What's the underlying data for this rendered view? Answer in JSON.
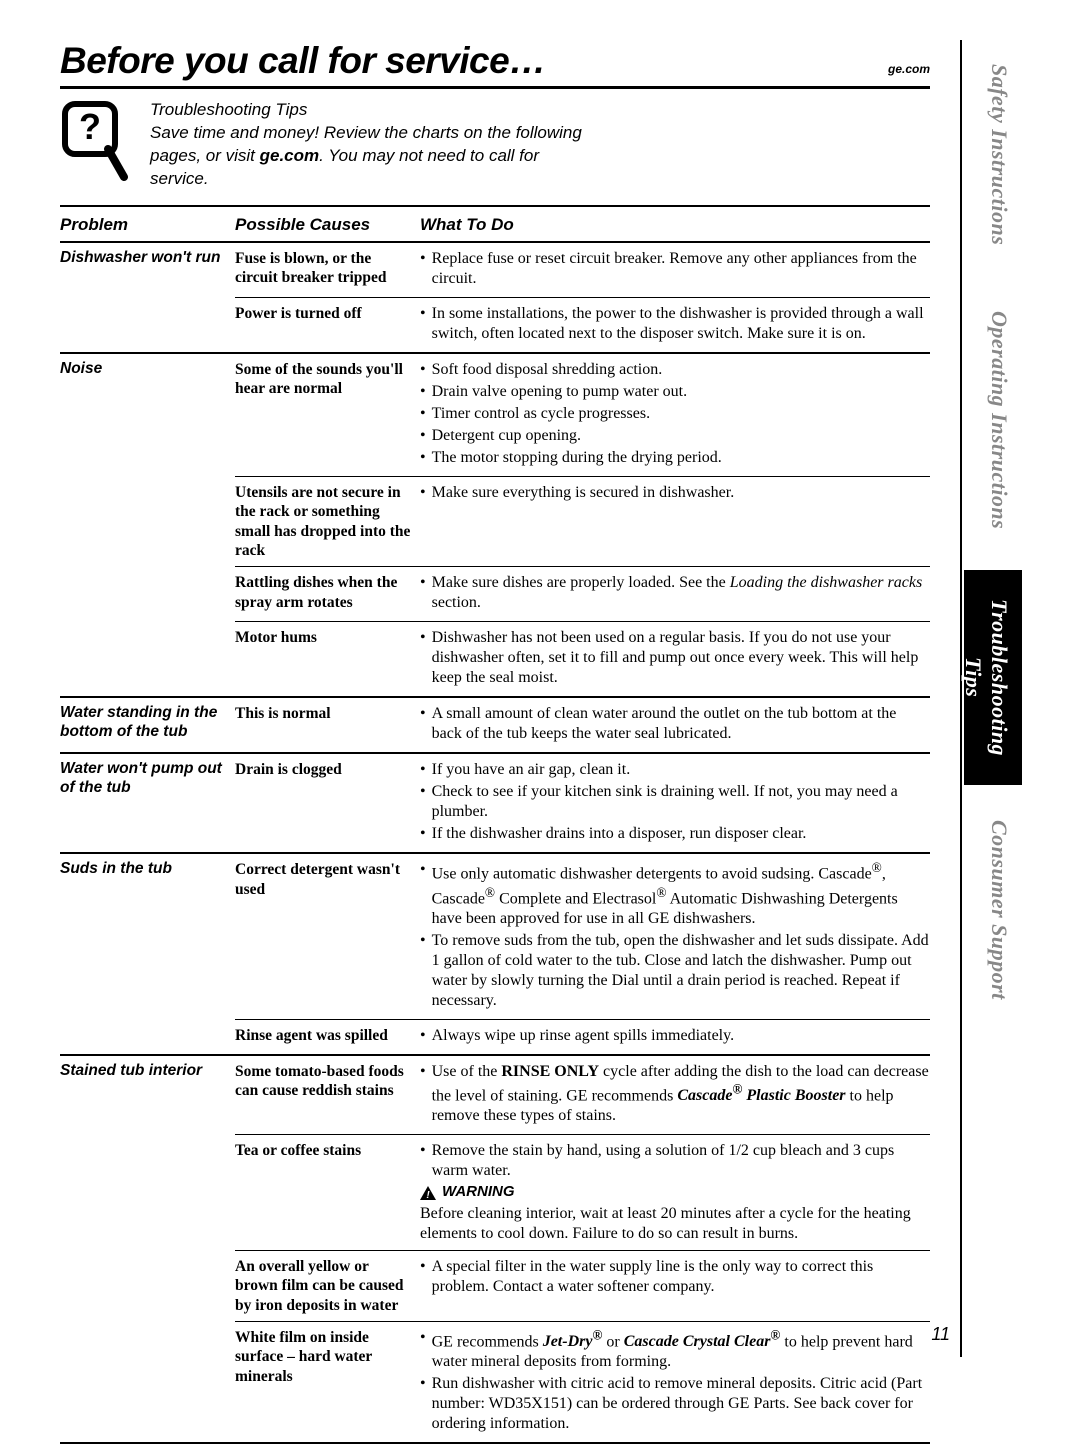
{
  "header": {
    "title": "Before you call for service…",
    "url": "ge.com"
  },
  "intro": {
    "heading": "Troubleshooting Tips",
    "body_prefix": "Save time and money! Review the charts on the following pages, or visit ",
    "body_bold": "ge.com",
    "body_suffix": ". You may not need to call for service."
  },
  "columns": {
    "problem": "Problem",
    "cause": "Possible Causes",
    "todo": "What To Do"
  },
  "sidebar": {
    "tabs": [
      "Safety Instructions",
      "Operating Instructions",
      "Troubleshooting Tips",
      "Consumer Support"
    ],
    "active_index": 2
  },
  "page_number": "11",
  "rows": [
    {
      "problem": "Dishwasher won't run",
      "causes": [
        {
          "cause": "Fuse is blown, or the circuit breaker tripped",
          "todo": [
            {
              "t": "Replace fuse or reset circuit breaker. Remove any other appliances from the circuit."
            }
          ]
        },
        {
          "cause": "Power is turned off",
          "todo": [
            {
              "t": "In some installations, the power to the dishwasher is provided through a wall switch, often located next to the disposer switch. Make sure it is on."
            }
          ]
        }
      ]
    },
    {
      "problem": "Noise",
      "causes": [
        {
          "cause": "Some of the sounds you'll hear are normal",
          "todo": [
            {
              "t": "Soft food disposal shredding action."
            },
            {
              "t": "Drain valve opening to pump water out."
            },
            {
              "t": "Timer control as cycle progresses."
            },
            {
              "t": "Detergent cup opening."
            },
            {
              "t": "The motor stopping during the drying period."
            }
          ]
        },
        {
          "cause": "Utensils are not secure in the rack or something small has dropped into the rack",
          "todo": [
            {
              "t": "Make sure everything is secured in dishwasher."
            }
          ]
        },
        {
          "cause": "Rattling dishes when the spray arm rotates",
          "todo": [
            {
              "html": "Make sure dishes are properly loaded. See the <span class='italic'>Loading the dishwasher racks</span> section."
            }
          ]
        },
        {
          "cause": "Motor hums",
          "todo": [
            {
              "t": "Dishwasher has not been used on a regular basis. If you do not use your dishwasher often, set it to fill and pump out once every week. This will help keep the seal moist."
            }
          ]
        }
      ]
    },
    {
      "problem": "Water standing in the bottom of the tub",
      "causes": [
        {
          "cause": "This is normal",
          "todo": [
            {
              "t": "A small amount of clean water around the outlet on the tub bottom at the back of the tub keeps the water seal lubricated."
            }
          ]
        }
      ]
    },
    {
      "problem": "Water won't pump out of the tub",
      "causes": [
        {
          "cause": "Drain is clogged",
          "todo": [
            {
              "t": "If you have an air gap, clean it."
            },
            {
              "t": "Check to see if your kitchen sink is draining well. If not, you may need a plumber."
            },
            {
              "t": "If the dishwasher drains into a disposer, run disposer clear."
            }
          ]
        }
      ]
    },
    {
      "problem": "Suds in the tub",
      "causes": [
        {
          "cause": "Correct detergent wasn't used",
          "todo": [
            {
              "html": "Use only automatic dishwasher detergents to avoid sudsing. Cascade<sup>®</sup>, Cascade<sup>®</sup> Complete and Electrasol<sup>®</sup> Automatic Dishwashing Detergents have been approved for use in all GE dishwashers."
            },
            {
              "t": "To remove suds from the tub, open the dishwasher and let suds dissipate. Add 1 gallon of cold water to the tub. Close and latch the dishwasher. Pump out water by slowly turning the Dial until a drain period is reached. Repeat if  necessary."
            }
          ]
        },
        {
          "cause": "Rinse agent was spilled",
          "todo": [
            {
              "t": "Always wipe up rinse agent spills immediately."
            }
          ]
        }
      ]
    },
    {
      "problem": "Stained tub interior",
      "causes": [
        {
          "cause": "Some tomato-based foods can cause reddish stains",
          "todo": [
            {
              "html": "Use of the <span class='bold'>RINSE ONLY</span> cycle after adding the dish to the load can decrease the level of staining. GE recommends <span class='bold italic'>Cascade<sup>®</sup> Plastic Booster</span> to help remove these types of stains."
            }
          ]
        },
        {
          "cause": "Tea or coffee stains",
          "todo": [
            {
              "t": "Remove the stain by hand, using a solution of 1/2 cup bleach and 3 cups warm water."
            }
          ],
          "warning_label": "WARNING",
          "after": "Before cleaning interior, wait at least 20 minutes after a cycle for the heating elements to cool down. Failure to do so can result in burns."
        },
        {
          "cause": "An overall yellow or brown film can be caused by iron deposits in water",
          "todo": [
            {
              "t": "A special filter in the water supply line is the only way to correct this problem. Contact a water softener company."
            }
          ]
        },
        {
          "cause": "White film on inside surface – hard water minerals",
          "todo": [
            {
              "html": "GE recommends <span class='bold italic'>Jet-Dry<sup>®</sup></span> or <span class='bold italic'>Cascade Crystal Clear<sup>®</sup></span> to help prevent hard water mineral deposits from forming."
            },
            {
              "t": "Run dishwasher with citric acid to remove mineral deposits. Citric acid (Part number: WD35X151) can be ordered through GE Parts. See back cover for ordering information."
            }
          ]
        }
      ]
    }
  ]
}
